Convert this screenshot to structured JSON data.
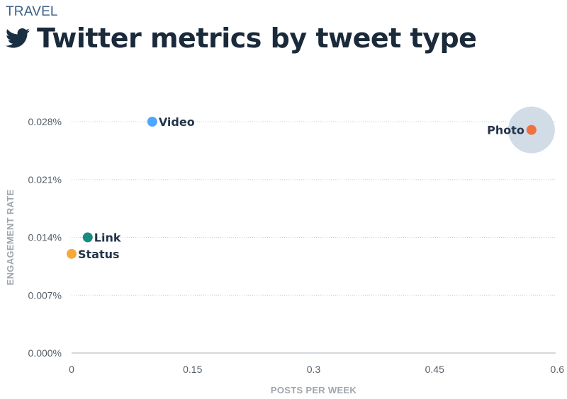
{
  "header": {
    "kicker": "TRAVEL",
    "title": "Twitter metrics by tweet type",
    "icon": "twitter-bird-icon",
    "icon_color": "#1b2f44"
  },
  "chart_data": {
    "type": "scatter",
    "title": "Twitter metrics by tweet type",
    "xlabel": "POSTS PER WEEK",
    "ylabel": "ENGAGEMENT RATE",
    "xlim": [
      0,
      0.6
    ],
    "ylim": [
      0,
      0.028
    ],
    "x_ticks": [
      {
        "value": 0,
        "label": "0"
      },
      {
        "value": 0.15,
        "label": "0.15"
      },
      {
        "value": 0.3,
        "label": "0.3"
      },
      {
        "value": 0.45,
        "label": "0.45"
      },
      {
        "value": 0.6,
        "label": "0.6"
      }
    ],
    "y_ticks": [
      {
        "value": 0,
        "label": "0.000%"
      },
      {
        "value": 0.007,
        "label": "0.007%"
      },
      {
        "value": 0.014,
        "label": "0.014%"
      },
      {
        "value": 0.021,
        "label": "0.021%"
      },
      {
        "value": 0.028,
        "label": "0.028%"
      }
    ],
    "grid": "horizontal dotted",
    "points": [
      {
        "name": "Video",
        "x": 0.1,
        "y": 0.028,
        "color": "#4da6ff",
        "label_side": "right"
      },
      {
        "name": "Photo",
        "x": 0.57,
        "y": 0.027,
        "color": "#f07040",
        "label_side": "left",
        "halo": true
      },
      {
        "name": "Link",
        "x": 0.02,
        "y": 0.014,
        "color": "#1a8a84",
        "label_side": "right"
      },
      {
        "name": "Status",
        "x": 0.0,
        "y": 0.012,
        "color": "#f5a83c",
        "label_side": "right"
      }
    ],
    "halo_color": "#ccd8e4"
  }
}
